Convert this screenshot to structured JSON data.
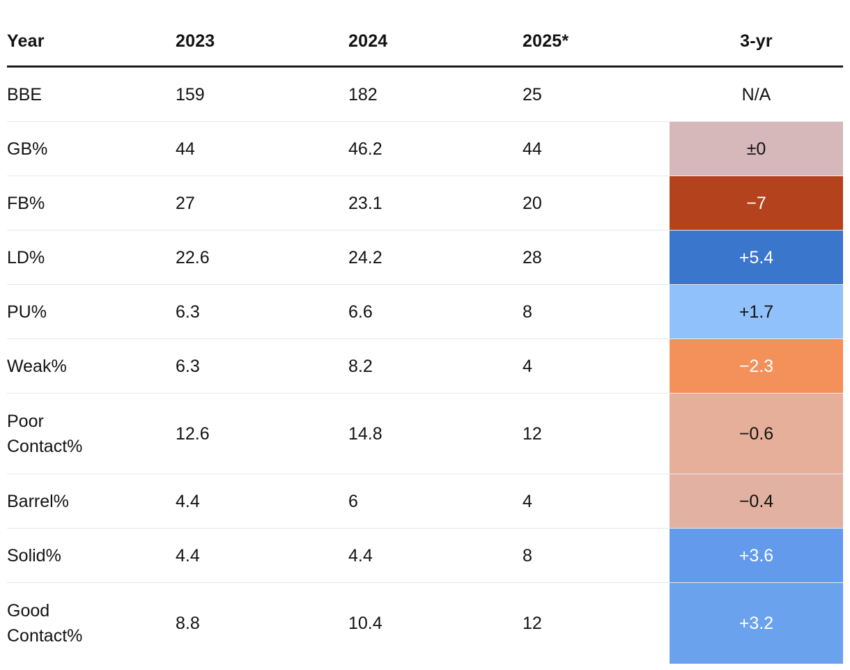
{
  "accent_colors": {
    "header_rule": "#1a1a1a",
    "row_separator": "#e8e8e8",
    "text": "#121212"
  },
  "t": {
    "columns": {
      "year": "Year",
      "y2023": "2023",
      "y2024": "2024",
      "y2025": "2025*",
      "yr3": "3-yr"
    },
    "rows": [
      {
        "label": "BBE",
        "y2023": "159",
        "y2024": "182",
        "y2025": "25",
        "d3": "N/A",
        "bg": "#ffffff",
        "fg": "#121212"
      },
      {
        "label": "GB%",
        "y2023": "44",
        "y2024": "46.2",
        "y2025": "44",
        "d3": "±0",
        "bg": "#d6b8bb",
        "fg": "#121212"
      },
      {
        "label": "FB%",
        "y2023": "27",
        "y2024": "23.1",
        "y2025": "20",
        "d3": "−7",
        "bg": "#b4431d",
        "fg": "#ffffff"
      },
      {
        "label": "LD%",
        "y2023": "22.6",
        "y2024": "24.2",
        "y2025": "28",
        "d3": "+5.4",
        "bg": "#3b76cd",
        "fg": "#ffffff"
      },
      {
        "label": "PU%",
        "y2023": "6.3",
        "y2024": "6.6",
        "y2025": "8",
        "d3": "+1.7",
        "bg": "#91c1fa",
        "fg": "#121212"
      },
      {
        "label": "Weak%",
        "y2023": "6.3",
        "y2024": "8.2",
        "y2025": "4",
        "d3": "−2.3",
        "bg": "#f4905a",
        "fg": "#ffffff"
      },
      {
        "label": "Poor Contact%",
        "y2023": "12.6",
        "y2024": "14.8",
        "y2025": "12",
        "d3": "−0.6",
        "bg": "#e5af9a",
        "fg": "#121212"
      },
      {
        "label": "Barrel%",
        "y2023": "4.4",
        "y2024": "6",
        "y2025": "4",
        "d3": "−0.4",
        "bg": "#e2b1a1",
        "fg": "#121212"
      },
      {
        "label": "Solid%",
        "y2023": "4.4",
        "y2024": "4.4",
        "y2025": "8",
        "d3": "+3.6",
        "bg": "#639aec",
        "fg": "#ffffff"
      },
      {
        "label": "Good Contact%",
        "y2023": "8.8",
        "y2024": "10.4",
        "y2025": "12",
        "d3": "+3.2",
        "bg": "#6ba2ee",
        "fg": "#ffffff"
      }
    ]
  },
  "chart_data": {
    "type": "table",
    "title": "",
    "columns": [
      "Year",
      "2023",
      "2024",
      "2025*",
      "3-yr"
    ],
    "rows": [
      [
        "BBE",
        159,
        182,
        25,
        "N/A"
      ],
      [
        "GB%",
        44,
        46.2,
        44,
        "±0"
      ],
      [
        "FB%",
        27,
        23.1,
        20,
        "−7"
      ],
      [
        "LD%",
        22.6,
        24.2,
        28,
        "+5.4"
      ],
      [
        "PU%",
        6.3,
        6.6,
        8,
        "+1.7"
      ],
      [
        "Weak%",
        6.3,
        8.2,
        4,
        "−2.3"
      ],
      [
        "Poor Contact%",
        12.6,
        14.8,
        12,
        "−0.6"
      ],
      [
        "Barrel%",
        4.4,
        6,
        4,
        "−0.4"
      ],
      [
        "Solid%",
        4.4,
        4.4,
        8,
        "+3.6"
      ],
      [
        "Good Contact%",
        8.8,
        10.4,
        12,
        "+3.2"
      ]
    ],
    "cell_colors_3yr": [
      "#ffffff",
      "#d6b8bb",
      "#b4431d",
      "#3b76cd",
      "#91c1fa",
      "#f4905a",
      "#e5af9a",
      "#e2b1a1",
      "#639aec",
      "#6ba2ee"
    ],
    "layout": "3-yr column rendered as color-coded heatmap cells; blues = positive change, oranges/reds = negative change"
  }
}
